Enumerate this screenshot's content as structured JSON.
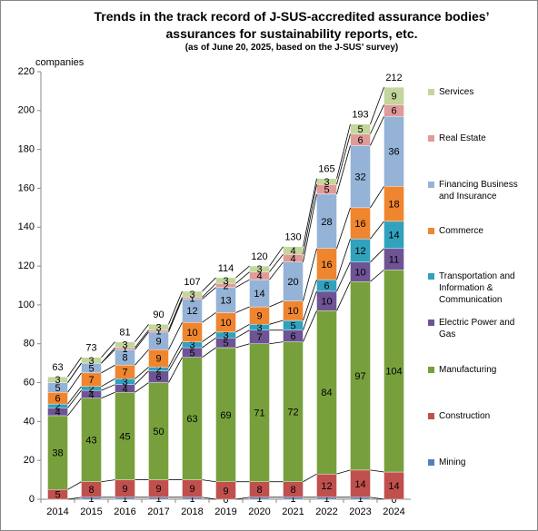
{
  "chart_data": {
    "type": "bar",
    "stacked": true,
    "title": "Trends in the track record of J-SUS-accredited assurance bodies’ assurances for sustainability reports, etc.",
    "subtitle": "(as of June 20, 2025, based on the J-SUS’ survey)",
    "y_label": "companies",
    "categories": [
      "2014",
      "2015",
      "2016",
      "2017",
      "2018",
      "2019",
      "2020",
      "2021",
      "2022",
      "2023",
      "2024"
    ],
    "series": [
      {
        "name": "Mining",
        "color": "#4f81bd",
        "values": [
          null,
          1,
          1,
          1,
          1,
          0,
          1,
          1,
          1,
          1,
          0
        ]
      },
      {
        "name": "Construction",
        "color": "#c0504d",
        "values": [
          5,
          8,
          9,
          9,
          9,
          9,
          8,
          8,
          12,
          14,
          14
        ]
      },
      {
        "name": "Manufacturing",
        "color": "#77a03c",
        "values": [
          38,
          43,
          45,
          50,
          63,
          69,
          71,
          72,
          84,
          97,
          104
        ]
      },
      {
        "name": "Electric Power and Gas",
        "color": "#6e5494",
        "values": [
          4,
          4,
          4,
          6,
          5,
          5,
          7,
          6,
          10,
          10,
          11
        ]
      },
      {
        "name": "Transportation and Information & Communication",
        "color": "#31a2bd",
        "values": [
          2,
          2,
          3,
          2,
          3,
          3,
          3,
          5,
          6,
          12,
          14
        ]
      },
      {
        "name": "Commerce",
        "color": "#f0852f",
        "values": [
          6,
          7,
          7,
          9,
          10,
          10,
          9,
          10,
          16,
          16,
          18
        ]
      },
      {
        "name": "Financing Business and Insurance",
        "color": "#95b3d7",
        "values": [
          5,
          5,
          8,
          9,
          12,
          13,
          14,
          20,
          28,
          32,
          36
        ]
      },
      {
        "name": "Real Estate",
        "color": "#e09b99",
        "values": [
          null,
          null,
          1,
          1,
          1,
          2,
          4,
          4,
          5,
          6,
          6
        ]
      },
      {
        "name": "Services",
        "color": "#c3d69b",
        "values": [
          3,
          3,
          3,
          3,
          3,
          3,
          3,
          4,
          3,
          5,
          9
        ]
      }
    ],
    "totals": [
      63,
      73,
      81,
      90,
      107,
      114,
      120,
      130,
      165,
      193,
      212
    ],
    "ylim": [
      0,
      220
    ],
    "yticks": [
      0,
      20,
      40,
      60,
      80,
      100,
      120,
      140,
      160,
      180,
      200,
      220
    ],
    "grid": false
  }
}
